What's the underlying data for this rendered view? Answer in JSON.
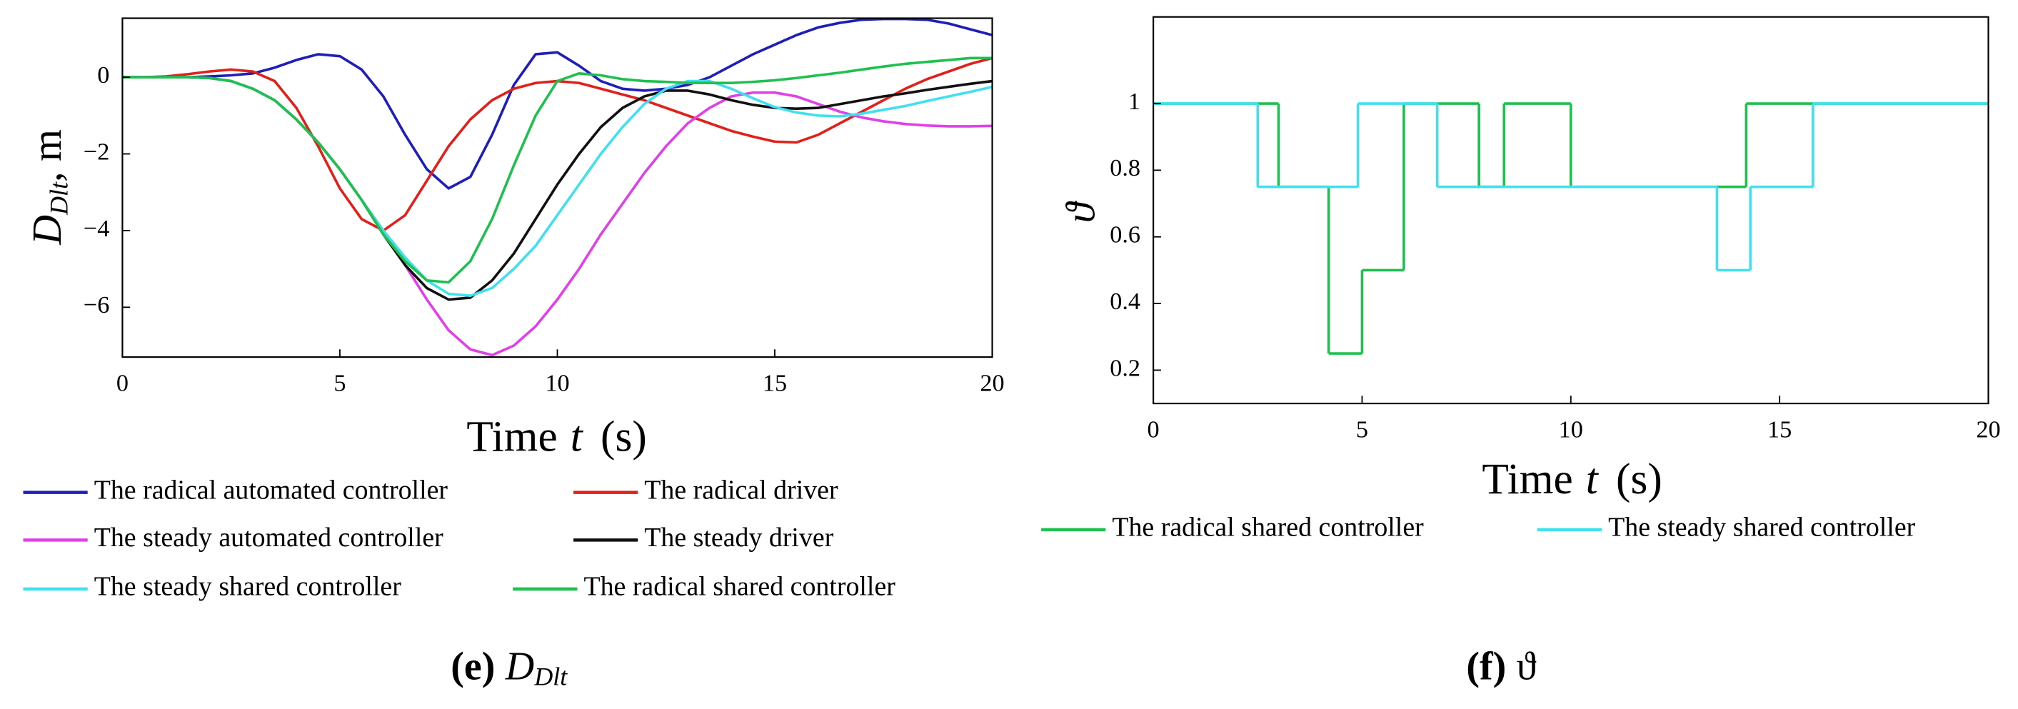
{
  "chart_data": [
    {
      "type": "line",
      "xlabel": "Time",
      "xlabel_var": "t",
      "xlabel_unit": "(s)",
      "ylabel": "D",
      "ylabel_sub": "Dlt",
      "ylabel_unit": ", m",
      "caption_label": "(e)",
      "caption_symbol": "D",
      "caption_sub": "Dlt",
      "xlim": [
        0,
        20
      ],
      "ylim": [
        -7.3,
        1.54
      ],
      "xticks": [
        0,
        5,
        10,
        15,
        20
      ],
      "yticks": [
        {
          "value": -6,
          "label": "−6"
        },
        {
          "value": -4,
          "label": "−4"
        },
        {
          "value": -2,
          "label": "−2"
        },
        0
      ],
      "x": [
        0,
        0.5,
        1,
        1.5,
        2,
        2.5,
        3,
        3.5,
        4,
        4.5,
        5,
        5.5,
        6,
        6.5,
        7,
        7.5,
        8,
        8.5,
        9,
        9.5,
        10,
        10.5,
        11,
        11.5,
        12,
        12.5,
        13,
        13.5,
        14,
        14.5,
        15,
        15.5,
        16,
        16.5,
        17,
        17.5,
        18,
        18.5,
        19,
        19.5,
        20
      ],
      "series": [
        {
          "name": "The radical automated controller",
          "color": "#1f1fb8",
          "values": [
            0,
            0,
            0,
            0,
            0.02,
            0.05,
            0.1,
            0.25,
            0.45,
            0.6,
            0.55,
            0.2,
            -0.5,
            -1.5,
            -2.4,
            -2.9,
            -2.6,
            -1.5,
            -0.2,
            0.6,
            0.65,
            0.3,
            -0.1,
            -0.3,
            -0.35,
            -0.3,
            -0.2,
            0,
            0.3,
            0.6,
            0.85,
            1.1,
            1.3,
            1.42,
            1.5,
            1.52,
            1.52,
            1.5,
            1.4,
            1.25,
            1.1
          ]
        },
        {
          "name": "The radical driver",
          "color": "#e0201a",
          "values": [
            0,
            0,
            0.02,
            0.08,
            0.15,
            0.2,
            0.15,
            -0.1,
            -0.8,
            -1.8,
            -2.9,
            -3.7,
            -4.0,
            -3.6,
            -2.7,
            -1.8,
            -1.1,
            -0.6,
            -0.3,
            -0.15,
            -0.1,
            -0.15,
            -0.3,
            -0.45,
            -0.6,
            -0.8,
            -1.0,
            -1.2,
            -1.4,
            -1.55,
            -1.68,
            -1.7,
            -1.5,
            -1.2,
            -0.9,
            -0.6,
            -0.3,
            -0.05,
            0.15,
            0.35,
            0.5
          ]
        },
        {
          "name": "The steady automated controller",
          "color": "#e040e8",
          "values": [
            0,
            0,
            0,
            0,
            -0.02,
            -0.1,
            -0.3,
            -0.6,
            -1.1,
            -1.7,
            -2.4,
            -3.2,
            -4.0,
            -4.9,
            -5.8,
            -6.6,
            -7.1,
            -7.25,
            -7.0,
            -6.5,
            -5.8,
            -5.0,
            -4.1,
            -3.3,
            -2.5,
            -1.8,
            -1.2,
            -0.8,
            -0.5,
            -0.4,
            -0.4,
            -0.5,
            -0.7,
            -0.9,
            -1.05,
            -1.15,
            -1.22,
            -1.26,
            -1.28,
            -1.28,
            -1.27
          ]
        },
        {
          "name": "The steady driver",
          "color": "#111111",
          "values": [
            0,
            0,
            0,
            0,
            -0.02,
            -0.1,
            -0.3,
            -0.6,
            -1.1,
            -1.7,
            -2.4,
            -3.2,
            -4.1,
            -4.9,
            -5.5,
            -5.8,
            -5.75,
            -5.3,
            -4.6,
            -3.7,
            -2.8,
            -2.0,
            -1.3,
            -0.8,
            -0.5,
            -0.35,
            -0.35,
            -0.45,
            -0.6,
            -0.72,
            -0.8,
            -0.82,
            -0.8,
            -0.7,
            -0.6,
            -0.5,
            -0.42,
            -0.33,
            -0.25,
            -0.17,
            -0.1
          ]
        },
        {
          "name": "The steady shared controller",
          "color": "#40e0f0",
          "values": [
            0,
            0,
            0,
            0,
            -0.02,
            -0.1,
            -0.3,
            -0.6,
            -1.1,
            -1.7,
            -2.4,
            -3.2,
            -4.0,
            -4.7,
            -5.3,
            -5.65,
            -5.7,
            -5.5,
            -5.0,
            -4.4,
            -3.6,
            -2.8,
            -2.0,
            -1.3,
            -0.7,
            -0.3,
            -0.1,
            -0.1,
            -0.3,
            -0.55,
            -0.78,
            -0.92,
            -1.0,
            -1.02,
            -0.95,
            -0.85,
            -0.75,
            -0.62,
            -0.5,
            -0.38,
            -0.25
          ]
        },
        {
          "name": "The radical shared controller",
          "color": "#20c050",
          "values": [
            0,
            0,
            0,
            0,
            -0.02,
            -0.1,
            -0.3,
            -0.6,
            -1.1,
            -1.7,
            -2.4,
            -3.2,
            -4.1,
            -4.8,
            -5.3,
            -5.35,
            -4.8,
            -3.7,
            -2.3,
            -1.0,
            -0.1,
            0.1,
            0.05,
            -0.05,
            -0.1,
            -0.12,
            -0.15,
            -0.15,
            -0.15,
            -0.12,
            -0.08,
            -0.02,
            0.05,
            0.12,
            0.2,
            0.28,
            0.35,
            0.4,
            0.45,
            0.5,
            0.5
          ]
        }
      ]
    },
    {
      "type": "line",
      "step": "post",
      "xlabel": "Time",
      "xlabel_var": "t",
      "xlabel_unit": "(s)",
      "ylabel": "ϑ",
      "caption_label": "(f)",
      "caption_symbol": "ϑ",
      "xlim": [
        0,
        20
      ],
      "ylim": [
        0.1,
        1.26
      ],
      "xticks": [
        0,
        5,
        10,
        15,
        20
      ],
      "yticks": [
        0.2,
        0.4,
        0.6,
        0.8,
        1
      ],
      "series": [
        {
          "name": "The radical shared controller",
          "color": "#20c050",
          "x": [
            0,
            3,
            4.2,
            5,
            6,
            7.8,
            8.4,
            10,
            14.2,
            20
          ],
          "values": [
            1,
            0.75,
            0.25,
            0.5,
            1,
            0.75,
            1,
            0.75,
            1,
            1
          ]
        },
        {
          "name": "The steady shared controller",
          "color": "#40e0f0",
          "x": [
            0,
            2.5,
            4.9,
            6.8,
            13.5,
            14.3,
            15.8,
            20
          ],
          "values": [
            1,
            0.75,
            1,
            0.75,
            0.5,
            0.75,
            1,
            1
          ]
        }
      ]
    }
  ]
}
